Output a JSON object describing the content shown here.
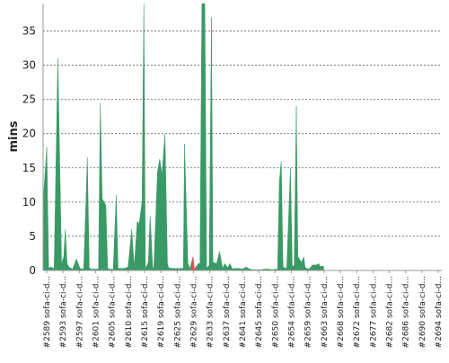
{
  "chart_data": {
    "type": "area",
    "ylabel": "mins",
    "xlabel": "",
    "ylim": [
      0,
      39
    ],
    "yticks": [
      0,
      5,
      10,
      15,
      20,
      25,
      30,
      35
    ],
    "grid": true,
    "x_range": [
      2589,
      2697
    ],
    "x_tick_labels": [
      "#2589 sofa-ci-d...",
      "#2593 sofa-ci-d...",
      "#2597 sofa-ci-d...",
      "#2601 sofa-ci-d...",
      "#2605 sofa-ci-d...",
      "#2610 sofa-ci-d...",
      "#2615 sofa-ci-d...",
      "#2619 sofa-ci-d...",
      "#2625 sofa-ci-d...",
      "#2629 sofa-ci-d...",
      "#2633 sofa-ci-d...",
      "#2637 sofa-ci-d...",
      "#2641 sofa-ci-d...",
      "#2645 sofa-ci-d...",
      "#2650 sofa-ci-d...",
      "#2654 sofa-ci-d...",
      "#2659 sofa-ci-d...",
      "#2663 sofa-ci-d...",
      "#2668 sofa-ci-d...",
      "#2672 sofa-ci-d...",
      "#2677 sofa-ci-d...",
      "#2682 sofa-ci-d...",
      "#2686 sofa-ci-d...",
      "#2690 sofa-ci-d...",
      "#2694 sofa-ci-d..."
    ],
    "series": [
      {
        "color": "#3a9a66",
        "points": [
          [
            2589,
            10
          ],
          [
            2590,
            18
          ],
          [
            2590.5,
            0.3
          ],
          [
            2591,
            0.5
          ],
          [
            2592,
            0.3
          ],
          [
            2593,
            31
          ],
          [
            2594,
            1
          ],
          [
            2594.6,
            2
          ],
          [
            2595,
            6
          ],
          [
            2595.5,
            1
          ],
          [
            2596,
            0.5
          ],
          [
            2597,
            0.2
          ],
          [
            2598,
            1.7
          ],
          [
            2599,
            0.3
          ],
          [
            2600,
            0.2
          ],
          [
            2601,
            16.5
          ],
          [
            2601.5,
            0.4
          ],
          [
            2602,
            0.2
          ],
          [
            2603,
            0.2
          ],
          [
            2604,
            0.2
          ],
          [
            2604.5,
            24.5
          ],
          [
            2605,
            10.5
          ],
          [
            2606,
            9.5
          ],
          [
            2606.5,
            0.3
          ],
          [
            2607,
            0.2
          ],
          [
            2608,
            0.2
          ],
          [
            2608.8,
            11
          ],
          [
            2609.3,
            0.3
          ],
          [
            2610,
            0.3
          ],
          [
            2611,
            0.3
          ],
          [
            2612,
            0.5
          ],
          [
            2613,
            6
          ],
          [
            2613.7,
            0.5
          ],
          [
            2614.5,
            7.2
          ],
          [
            2615,
            6.8
          ],
          [
            2615.8,
            10
          ],
          [
            2616.3,
            39
          ],
          [
            2616.7,
            0.3
          ],
          [
            2617.5,
            1.2
          ],
          [
            2618,
            8
          ],
          [
            2618.7,
            0.3
          ],
          [
            2619,
            0.5
          ],
          [
            2620,
            14.5
          ],
          [
            2620.6,
            16.3
          ],
          [
            2621.2,
            14
          ],
          [
            2622,
            20
          ],
          [
            2622.7,
            1
          ],
          [
            2623,
            0.4
          ],
          [
            2624,
            0.3
          ],
          [
            2625,
            0.3
          ],
          [
            2626,
            0.3
          ],
          [
            2627,
            0.3
          ],
          [
            2627.3,
            18.5
          ],
          [
            2628.2,
            1
          ],
          [
            2628.8,
            0.3
          ],
          [
            2629.6,
            2
          ],
          [
            2630,
            0.1
          ],
          [
            2631,
            1
          ],
          [
            2631.5,
            1
          ],
          [
            2632,
            39
          ],
          [
            2632.8,
            39
          ],
          [
            2633.3,
            0.3
          ],
          [
            2634,
            0.8
          ],
          [
            2634.6,
            37
          ],
          [
            2635,
            1.2
          ],
          [
            2636,
            1
          ],
          [
            2636.8,
            2.8
          ],
          [
            2637.6,
            0.3
          ],
          [
            2638.2,
            1
          ],
          [
            2639,
            0.4
          ],
          [
            2639.6,
            1
          ],
          [
            2640.3,
            0.2
          ],
          [
            2641,
            0.3
          ],
          [
            2642,
            0.3
          ],
          [
            2643,
            0.2
          ],
          [
            2644,
            0.5
          ],
          [
            2645,
            0.2
          ],
          [
            2646,
            0.1
          ],
          [
            2647,
            0.1
          ],
          [
            2648,
            0.1
          ],
          [
            2649,
            0.2
          ],
          [
            2650,
            0.2
          ],
          [
            2651,
            0.1
          ],
          [
            2652.5,
            0.2
          ],
          [
            2653,
            13
          ],
          [
            2653.5,
            16
          ],
          [
            2654,
            0.5
          ],
          [
            2655,
            0.3
          ],
          [
            2656,
            15
          ],
          [
            2656.5,
            0.5
          ],
          [
            2657,
            0.8
          ],
          [
            2657.6,
            24
          ],
          [
            2658,
            2
          ],
          [
            2659,
            1.2
          ],
          [
            2659.6,
            2
          ],
          [
            2660,
            0.4
          ],
          [
            2661,
            0.2
          ],
          [
            2662,
            0.8
          ],
          [
            2663,
            0.8
          ],
          [
            2663.7,
            1
          ],
          [
            2664,
            0.6
          ],
          [
            2665,
            0.6
          ]
        ]
      },
      {
        "color": "#e05050",
        "points": [
          [
            2629.2,
            0.3
          ],
          [
            2629.6,
            2
          ],
          [
            2630,
            0.1
          ],
          [
            2630.4,
            0.6
          ]
        ]
      }
    ]
  }
}
